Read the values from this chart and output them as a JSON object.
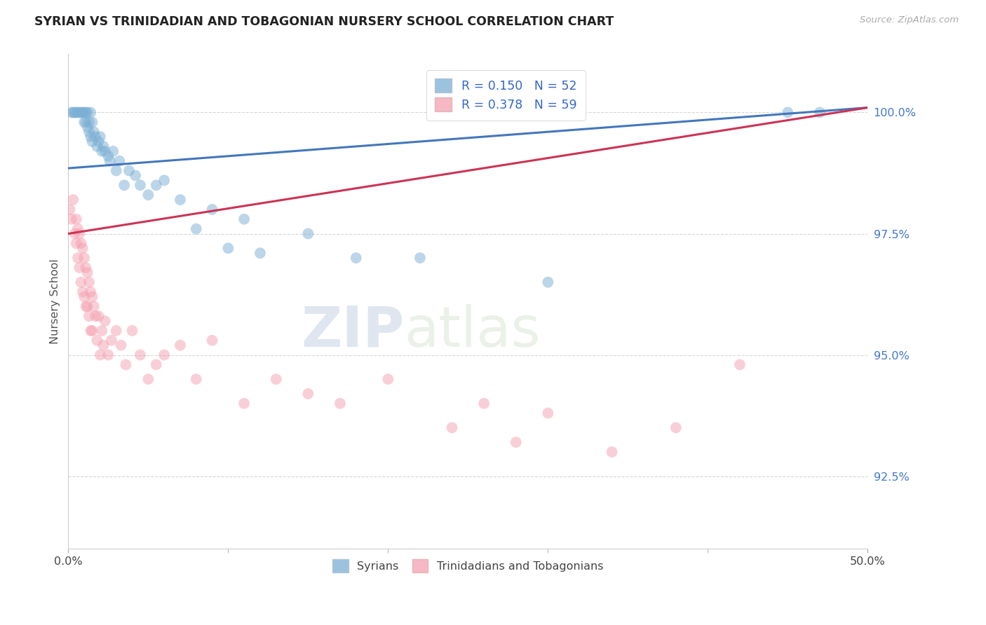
{
  "title": "SYRIAN VS TRINIDADIAN AND TOBAGONIAN NURSERY SCHOOL CORRELATION CHART",
  "source": "Source: ZipAtlas.com",
  "ylabel": "Nursery School",
  "xlim": [
    0.0,
    50.0
  ],
  "ylim": [
    91.0,
    101.2
  ],
  "ytick_labels": [
    "92.5%",
    "95.0%",
    "97.5%",
    "100.0%"
  ],
  "ytick_values": [
    92.5,
    95.0,
    97.5,
    100.0
  ],
  "legend_r_blue": "R = 0.150",
  "legend_n_blue": "N = 52",
  "legend_r_pink": "R = 0.378",
  "legend_n_pink": "N = 59",
  "legend_label_blue": "Syrians",
  "legend_label_pink": "Trinidadians and Tobagonians",
  "blue_color": "#7BAFD4",
  "pink_color": "#F4A0B0",
  "blue_line_color": "#4477BB",
  "pink_line_color": "#CC3355",
  "watermark_zip": "ZIP",
  "watermark_atlas": "atlas",
  "blue_scatter_x": [
    0.2,
    0.3,
    0.4,
    0.5,
    0.6,
    0.7,
    0.8,
    0.9,
    1.0,
    1.0,
    1.1,
    1.1,
    1.2,
    1.2,
    1.3,
    1.3,
    1.4,
    1.4,
    1.5,
    1.5,
    1.6,
    1.7,
    1.8,
    1.9,
    2.0,
    2.1,
    2.2,
    2.3,
    2.5,
    2.6,
    2.8,
    3.0,
    3.2,
    3.5,
    3.8,
    4.2,
    4.5,
    5.0,
    5.5,
    6.0,
    7.0,
    8.0,
    9.0,
    10.0,
    11.0,
    12.0,
    15.0,
    18.0,
    22.0,
    30.0,
    45.0,
    47.0
  ],
  "blue_scatter_y": [
    100.0,
    100.0,
    100.0,
    100.0,
    100.0,
    100.0,
    100.0,
    100.0,
    100.0,
    99.8,
    100.0,
    99.8,
    100.0,
    99.7,
    99.8,
    99.6,
    100.0,
    99.5,
    99.8,
    99.4,
    99.6,
    99.5,
    99.3,
    99.4,
    99.5,
    99.2,
    99.3,
    99.2,
    99.1,
    99.0,
    99.2,
    98.8,
    99.0,
    98.5,
    98.8,
    98.7,
    98.5,
    98.3,
    98.5,
    98.6,
    98.2,
    97.6,
    98.0,
    97.2,
    97.8,
    97.1,
    97.5,
    97.0,
    97.0,
    96.5,
    100.0,
    100.0
  ],
  "pink_scatter_x": [
    0.1,
    0.2,
    0.3,
    0.4,
    0.5,
    0.5,
    0.6,
    0.6,
    0.7,
    0.7,
    0.8,
    0.8,
    0.9,
    0.9,
    1.0,
    1.0,
    1.1,
    1.1,
    1.2,
    1.2,
    1.3,
    1.3,
    1.4,
    1.4,
    1.5,
    1.5,
    1.6,
    1.7,
    1.8,
    1.9,
    2.0,
    2.1,
    2.2,
    2.3,
    2.5,
    2.7,
    3.0,
    3.3,
    3.6,
    4.0,
    4.5,
    5.0,
    5.5,
    6.0,
    7.0,
    8.0,
    9.0,
    11.0,
    13.0,
    15.0,
    17.0,
    20.0,
    24.0,
    26.0,
    28.0,
    30.0,
    34.0,
    38.0,
    42.0
  ],
  "pink_scatter_y": [
    98.0,
    97.8,
    98.2,
    97.5,
    97.8,
    97.3,
    97.6,
    97.0,
    97.5,
    96.8,
    97.3,
    96.5,
    97.2,
    96.3,
    97.0,
    96.2,
    96.8,
    96.0,
    96.7,
    96.0,
    96.5,
    95.8,
    96.3,
    95.5,
    96.2,
    95.5,
    96.0,
    95.8,
    95.3,
    95.8,
    95.0,
    95.5,
    95.2,
    95.7,
    95.0,
    95.3,
    95.5,
    95.2,
    94.8,
    95.5,
    95.0,
    94.5,
    94.8,
    95.0,
    95.2,
    94.5,
    95.3,
    94.0,
    94.5,
    94.2,
    94.0,
    94.5,
    93.5,
    94.0,
    93.2,
    93.8,
    93.0,
    93.5,
    94.8
  ]
}
